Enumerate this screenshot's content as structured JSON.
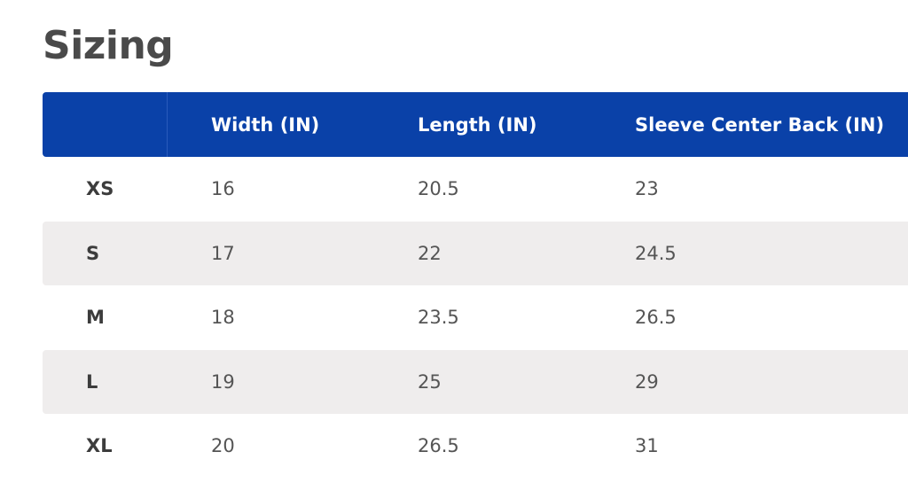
{
  "header": {
    "title": "Sizing"
  },
  "table": {
    "columns": [
      "Width (IN)",
      "Length (IN)",
      "Sleeve Center Back (IN)"
    ],
    "rows": [
      [
        "XS",
        "16",
        "20.5",
        "23"
      ],
      [
        "S",
        "17",
        "22",
        "24.5"
      ],
      [
        "M",
        "18",
        "23.5",
        "26.5"
      ],
      [
        "L",
        "19",
        "25",
        "29"
      ],
      [
        "XL",
        "20",
        "26.5",
        "31"
      ]
    ]
  }
}
